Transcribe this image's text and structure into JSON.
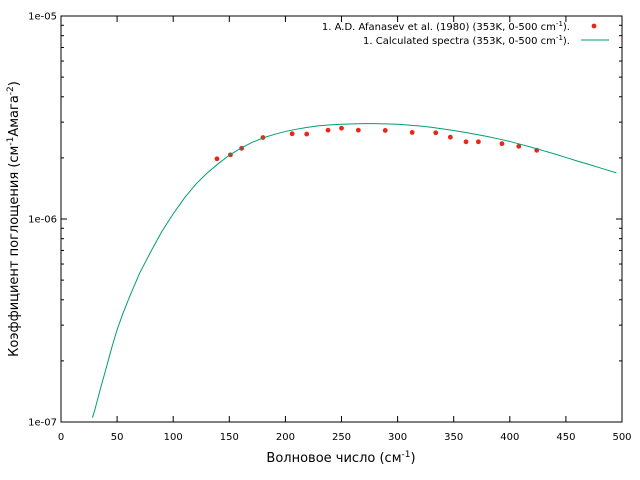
{
  "chart_data": {
    "type": "scatter",
    "title": "",
    "xlabel": {
      "main": "Волновое число (см",
      "sup": "-1",
      "tail": ")"
    },
    "ylabel": {
      "main": "Коэффициент поглощения (см",
      "sup1": "-1",
      "mid": "Амага",
      "sup2": "-2",
      "tail": ")"
    },
    "xlim": [
      0,
      500
    ],
    "ylim": [
      1e-07,
      1e-05
    ],
    "yscale": "log",
    "grid": false,
    "legend_position": "top-right",
    "x_ticks": [
      0,
      50,
      100,
      150,
      200,
      250,
      300,
      350,
      400,
      450,
      500
    ],
    "y_ticks": [
      {
        "value": 1e-07,
        "label": "1e-07"
      },
      {
        "value": 1e-06,
        "label": "1e-06"
      },
      {
        "value": 1e-05,
        "label": "1e-05"
      }
    ],
    "series": [
      {
        "name": "1. A.D. Afanasev et al. (1980) (353K, 0-500 cm",
        "name_sup": "-1",
        "name_tail": ").",
        "kind": "points",
        "color": "#e8261a",
        "points": [
          [
            139,
            1.98e-06
          ],
          [
            151,
            2.07e-06
          ],
          [
            161,
            2.23e-06
          ],
          [
            180,
            2.52e-06
          ],
          [
            206,
            2.63e-06
          ],
          [
            219,
            2.62e-06
          ],
          [
            238,
            2.74e-06
          ],
          [
            250,
            2.8e-06
          ],
          [
            265,
            2.74e-06
          ],
          [
            289,
            2.73e-06
          ],
          [
            313,
            2.67e-06
          ],
          [
            334,
            2.66e-06
          ],
          [
            347,
            2.53e-06
          ],
          [
            361,
            2.4e-06
          ],
          [
            372,
            2.4e-06
          ],
          [
            393,
            2.35e-06
          ],
          [
            408,
            2.28e-06
          ],
          [
            424,
            2.18e-06
          ]
        ]
      },
      {
        "name": "1. Calculated spectra (353K, 0-500 cm",
        "name_sup": "-1",
        "name_tail": ").",
        "kind": "line",
        "color": "#009e73",
        "points": [
          [
            28,
            1.05e-07
          ],
          [
            30,
            1.14e-07
          ],
          [
            35,
            1.45e-07
          ],
          [
            40,
            1.82e-07
          ],
          [
            45,
            2.3e-07
          ],
          [
            50,
            2.85e-07
          ],
          [
            55,
            3.4e-07
          ],
          [
            60,
            4e-07
          ],
          [
            70,
            5.4e-07
          ],
          [
            80,
            6.9e-07
          ],
          [
            90,
            8.7e-07
          ],
          [
            100,
            1.06e-06
          ],
          [
            110,
            1.27e-06
          ],
          [
            120,
            1.48e-06
          ],
          [
            130,
            1.68e-06
          ],
          [
            140,
            1.87e-06
          ],
          [
            150,
            2.06e-06
          ],
          [
            160,
            2.23e-06
          ],
          [
            170,
            2.38e-06
          ],
          [
            180,
            2.51e-06
          ],
          [
            190,
            2.61e-06
          ],
          [
            200,
            2.7e-06
          ],
          [
            210,
            2.77e-06
          ],
          [
            220,
            2.83e-06
          ],
          [
            230,
            2.88e-06
          ],
          [
            240,
            2.91e-06
          ],
          [
            250,
            2.93e-06
          ],
          [
            260,
            2.94e-06
          ],
          [
            270,
            2.95e-06
          ],
          [
            280,
            2.95e-06
          ],
          [
            290,
            2.94e-06
          ],
          [
            300,
            2.93e-06
          ],
          [
            310,
            2.9e-06
          ],
          [
            320,
            2.87e-06
          ],
          [
            330,
            2.83e-06
          ],
          [
            340,
            2.78e-06
          ],
          [
            350,
            2.73e-06
          ],
          [
            360,
            2.67e-06
          ],
          [
            370,
            2.61e-06
          ],
          [
            380,
            2.55e-06
          ],
          [
            390,
            2.48e-06
          ],
          [
            400,
            2.41e-06
          ],
          [
            410,
            2.33e-06
          ],
          [
            420,
            2.25e-06
          ],
          [
            430,
            2.17e-06
          ],
          [
            440,
            2.09e-06
          ],
          [
            450,
            2.01e-06
          ],
          [
            460,
            1.93e-06
          ],
          [
            470,
            1.86e-06
          ],
          [
            480,
            1.79e-06
          ],
          [
            490,
            1.72e-06
          ],
          [
            495,
            1.69e-06
          ]
        ]
      }
    ]
  }
}
